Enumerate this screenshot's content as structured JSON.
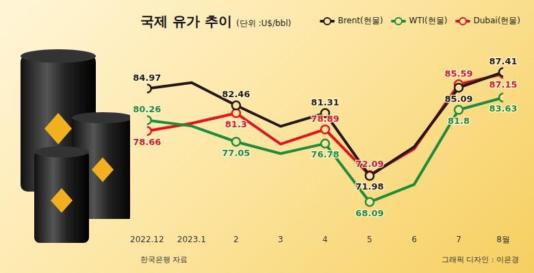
{
  "chart_data": {
    "type": "line",
    "title": "국제 유가 추이",
    "subtitle": "(단위 :U$/bbl)",
    "annotations": [
      "한국은행 자료",
      "그래픽 디자인 : 이은경"
    ],
    "categories": [
      "2022.12",
      "2023.1",
      "2",
      "3",
      "4",
      "5",
      "6",
      "7",
      "8월"
    ],
    "series": [
      {
        "name": "Brent(현물)",
        "color": "#231815",
        "values": [
          84.97,
          85.85,
          82.46,
          79.34,
          81.31,
          71.98,
          76.3,
          85.09,
          87.41
        ],
        "value_labels": [
          "84.97",
          null,
          "82.46",
          null,
          "81.31",
          "71.98",
          null,
          "85.09",
          "87.41"
        ]
      },
      {
        "name": "WTI(현물)",
        "color": "#1e8c3a",
        "values": [
          80.26,
          79.4,
          77.05,
          75.3,
          76.78,
          68.09,
          70.7,
          81.8,
          83.63
        ],
        "value_labels": [
          "80.26",
          null,
          "77.05",
          null,
          "76.78",
          "68.09",
          null,
          "81.8",
          "83.63"
        ]
      },
      {
        "name": "Dubai(현물)",
        "color": "#e1141e",
        "values": [
          78.66,
          79.8,
          81.3,
          76.7,
          78.89,
          72.09,
          76.0,
          85.59,
          87.15
        ],
        "value_labels": [
          "78.66",
          null,
          "81.3",
          null,
          "78.89",
          "72.09",
          null,
          "85.59",
          "87.15"
        ]
      }
    ],
    "ylim": [
      65,
      90
    ],
    "grid": false,
    "legend": "top-right",
    "tick_labels": "x",
    "data_labels": true,
    "marker": "circle",
    "line_style": "solid"
  }
}
